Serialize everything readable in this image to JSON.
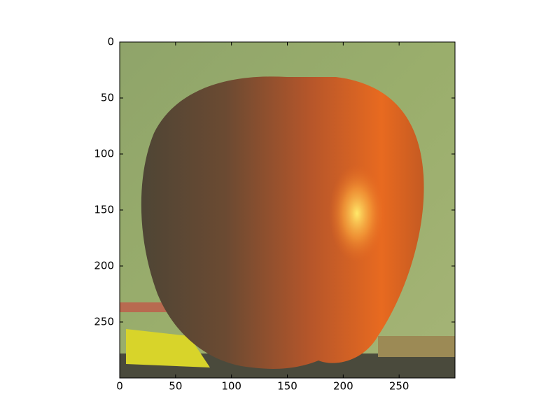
{
  "chart_data": {
    "type": "image",
    "xlim": [
      0,
      300
    ],
    "ylim": [
      300,
      0
    ],
    "xticks": [
      0,
      50,
      100,
      150,
      200,
      250
    ],
    "yticks": [
      0,
      50,
      100,
      150,
      200,
      250
    ]
  }
}
